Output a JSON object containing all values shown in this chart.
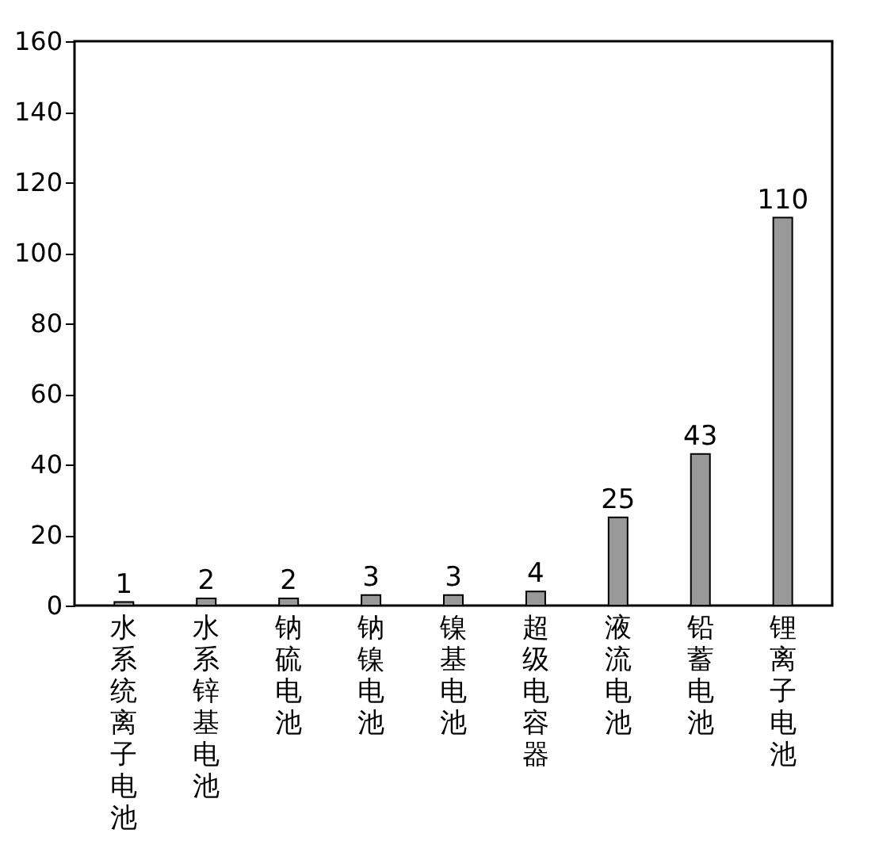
{
  "chart_data": {
    "type": "bar",
    "categories": [
      "水系统离子电池",
      "水系锌基电池",
      "钠硫电池",
      "钠镍电池",
      "镍基电池",
      "超级电容器",
      "液流电池",
      "铅蓄电池",
      "锂离子电池"
    ],
    "values": [
      1,
      2,
      2,
      3,
      3,
      4,
      25,
      43,
      110
    ],
    "color": "#999999",
    "ylim": [
      0,
      160
    ],
    "yticks": [
      0,
      20,
      40,
      60,
      80,
      100,
      120,
      140,
      160
    ],
    "grid": false,
    "data_labels": true
  }
}
